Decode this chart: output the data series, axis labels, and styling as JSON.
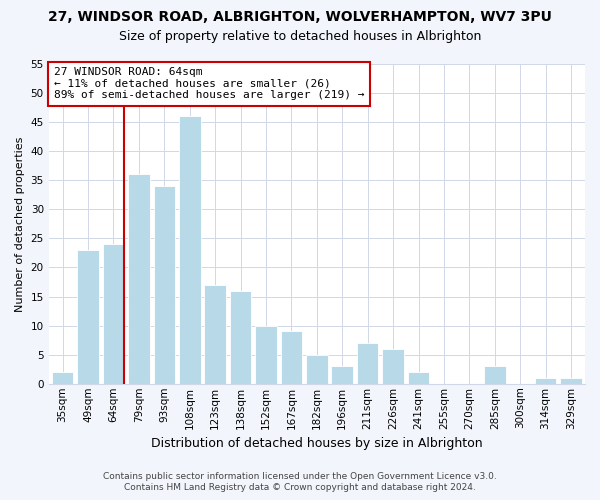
{
  "title": "27, WINDSOR ROAD, ALBRIGHTON, WOLVERHAMPTON, WV7 3PU",
  "subtitle": "Size of property relative to detached houses in Albrighton",
  "xlabel": "Distribution of detached houses by size in Albrighton",
  "ylabel": "Number of detached properties",
  "bar_labels": [
    "35sqm",
    "49sqm",
    "64sqm",
    "79sqm",
    "93sqm",
    "108sqm",
    "123sqm",
    "138sqm",
    "152sqm",
    "167sqm",
    "182sqm",
    "196sqm",
    "211sqm",
    "226sqm",
    "241sqm",
    "255sqm",
    "270sqm",
    "285sqm",
    "300sqm",
    "314sqm",
    "329sqm"
  ],
  "bar_values": [
    2,
    23,
    24,
    36,
    34,
    46,
    17,
    16,
    10,
    9,
    5,
    3,
    7,
    6,
    2,
    0,
    0,
    3,
    0,
    1,
    1
  ],
  "bar_color": "#b8d9e8",
  "vline_bar_index": 2,
  "vline_color": "#cc0000",
  "ylim": [
    0,
    55
  ],
  "yticks": [
    0,
    5,
    10,
    15,
    20,
    25,
    30,
    35,
    40,
    45,
    50,
    55
  ],
  "annotation_title": "27 WINDSOR ROAD: 64sqm",
  "annotation_line1": "← 11% of detached houses are smaller (26)",
  "annotation_line2": "89% of semi-detached houses are larger (219) →",
  "footer1": "Contains HM Land Registry data © Crown copyright and database right 2024.",
  "footer2": "Contains public sector information licensed under the Open Government Licence v3.0.",
  "background_color": "#f2f5fb",
  "plot_bg_color": "#ffffff",
  "grid_color": "#d0d8e8",
  "title_fontsize": 10,
  "subtitle_fontsize": 9,
  "ylabel_fontsize": 8,
  "xlabel_fontsize": 9,
  "tick_fontsize": 7.5,
  "ann_fontsize": 8,
  "footer_fontsize": 6.5
}
